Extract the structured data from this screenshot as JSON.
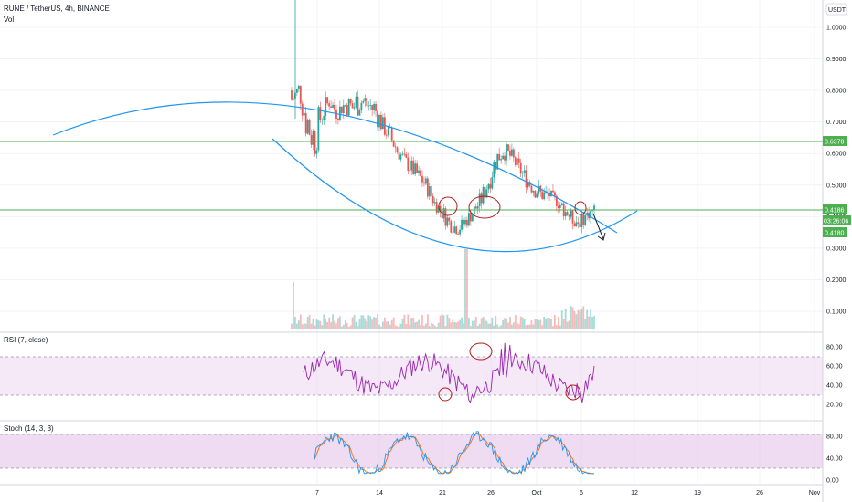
{
  "header": {
    "symbol_line": "RUNE / TetherUS, 4h, BINANCE",
    "volume_label": "Vol",
    "currency": "USDT"
  },
  "price_axis": {
    "ticks": [
      "1.0000",
      "0.9000",
      "0.8000",
      "0.7000",
      "0.6000",
      "0.5000",
      "0.4000",
      "0.3000",
      "0.2000",
      "0.1000"
    ]
  },
  "badges": {
    "level_upper": "0.6378",
    "level_lower": "0.4186",
    "countdown": "03:26:06",
    "last_price": "0.4180"
  },
  "rsi": {
    "title": "RSI (7, close)",
    "ticks": [
      "80.00",
      "60.00",
      "40.00",
      "20.00"
    ],
    "band": [
      30,
      70
    ]
  },
  "stoch": {
    "title": "Stoch (14, 3, 3)",
    "ticks": [
      "80.00",
      "40.00",
      "0.00"
    ],
    "band": [
      20,
      80
    ]
  },
  "time_axis": {
    "ticks": [
      "7",
      "14",
      "21",
      "26",
      "Oct",
      "6",
      "12",
      "19",
      "26",
      "Nov"
    ]
  },
  "colors": {
    "up": "#26a69a",
    "down": "#ef5350",
    "curve": "#2196f3",
    "level": "#4caf50",
    "rsi_line": "#9c27b0",
    "stoch_k": "#2196f3",
    "stoch_d": "#ff6d00",
    "annotation": "#b71c1c"
  },
  "chart_data": {
    "type": "candlestick",
    "symbol": "RUNE / TetherUS",
    "interval": "4h",
    "exchange": "BINANCE",
    "horizontal_levels": [
      0.6378,
      0.4186
    ],
    "last_price": 0.418,
    "ohlc_anchor_closes": [
      [
        0.74,
        0.8
      ],
      [
        0.77,
        0.84
      ],
      [
        0.62,
        0.79
      ],
      [
        0.57,
        0.72
      ],
      [
        0.68,
        0.78
      ],
      [
        0.74,
        0.79
      ],
      [
        0.7,
        0.76
      ],
      [
        0.73,
        0.78
      ],
      [
        0.69,
        0.8
      ],
      [
        0.72,
        0.82
      ],
      [
        0.7,
        0.81
      ],
      [
        0.69,
        0.79
      ],
      [
        0.66,
        0.72
      ],
      [
        0.62,
        0.69
      ],
      [
        0.58,
        0.64
      ],
      [
        0.55,
        0.6
      ],
      [
        0.52,
        0.58
      ],
      [
        0.5,
        0.55
      ],
      [
        0.46,
        0.52
      ],
      [
        0.42,
        0.46
      ],
      [
        0.38,
        0.44
      ],
      [
        0.35,
        0.4
      ],
      [
        0.34,
        0.38
      ],
      [
        0.36,
        0.41
      ],
      [
        0.39,
        0.44
      ],
      [
        0.42,
        0.48
      ],
      [
        0.47,
        0.55
      ],
      [
        0.54,
        0.62
      ],
      [
        0.58,
        0.64
      ],
      [
        0.56,
        0.62
      ],
      [
        0.53,
        0.58
      ],
      [
        0.49,
        0.55
      ],
      [
        0.46,
        0.52
      ],
      [
        0.44,
        0.5
      ],
      [
        0.45,
        0.49
      ],
      [
        0.43,
        0.47
      ],
      [
        0.4,
        0.45
      ],
      [
        0.37,
        0.42
      ],
      [
        0.36,
        0.4
      ],
      [
        0.38,
        0.43
      ],
      [
        0.41,
        0.44
      ]
    ],
    "rsi_band": [
      30,
      70
    ],
    "stoch_band": [
      20,
      80
    ]
  }
}
